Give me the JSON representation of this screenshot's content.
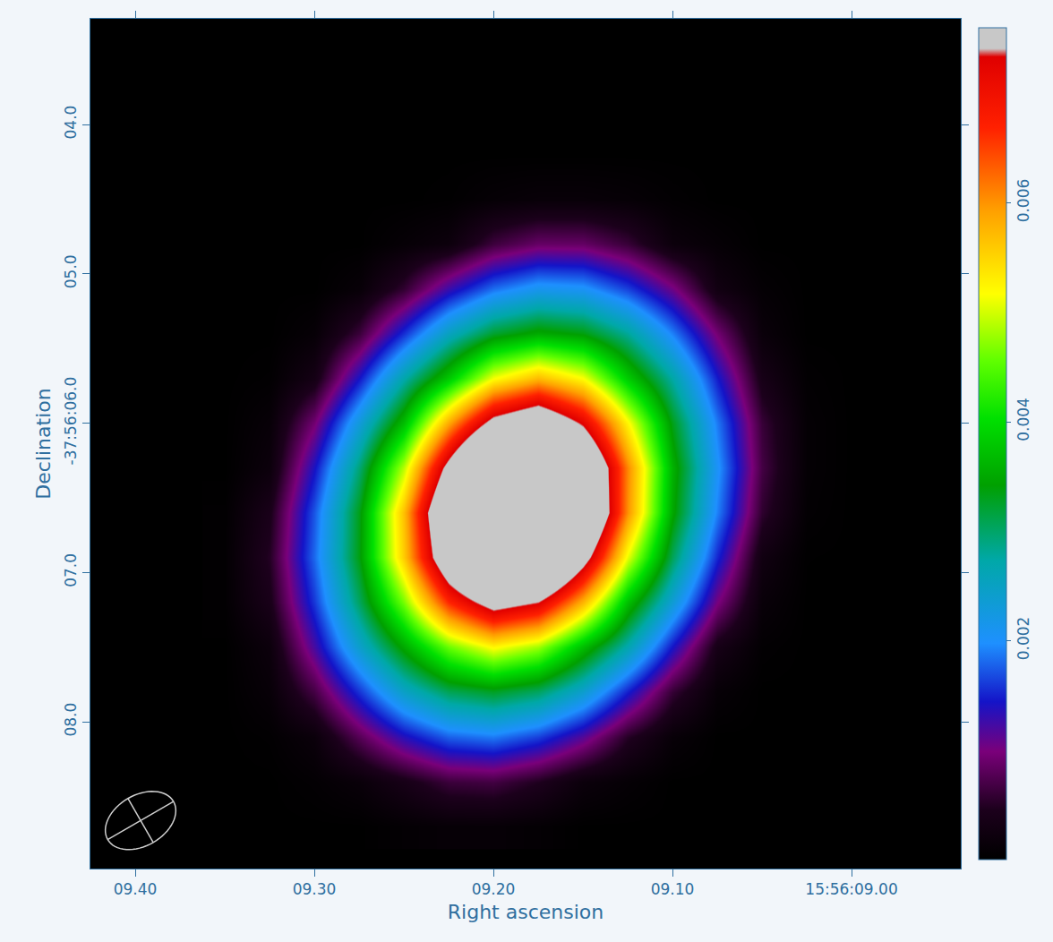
{
  "chart_data": {
    "type": "heatmap",
    "xlabel": "Right ascension",
    "ylabel": "Declination",
    "x": [
      9.35,
      9.325,
      9.3,
      9.275,
      9.25,
      9.225,
      9.2,
      9.175,
      9.15,
      9.125,
      9.1,
      9.075,
      9.05,
      9.025,
      9.0
    ],
    "y": [
      3.9,
      4.2,
      4.5,
      4.8,
      5.1,
      5.4,
      5.7,
      6.0,
      6.3,
      6.6,
      6.9,
      7.2,
      7.5,
      7.8,
      8.1,
      8.4,
      8.7
    ],
    "z": [
      [
        0,
        0,
        0,
        0,
        0,
        0,
        0,
        0,
        0,
        0,
        0,
        0,
        0,
        0,
        0
      ],
      [
        0,
        0,
        0,
        0,
        0,
        0,
        0,
        0,
        0,
        0,
        0,
        0,
        0,
        0,
        0
      ],
      [
        0,
        0,
        0,
        0,
        0,
        2e-05,
        9e-05,
        0.00013,
        0.00013,
        0.0001,
        4e-05,
        0,
        0,
        0,
        0
      ],
      [
        0,
        0,
        0,
        0,
        0.0001,
        0.0002,
        0.00064,
        0.00087,
        0.00086,
        0.00061,
        0.00019,
        9e-05,
        0,
        0,
        0
      ],
      [
        0,
        0,
        0,
        0.00012,
        0.00057,
        0.00127,
        0.00183,
        0.00212,
        0.00205,
        0.00163,
        0.00104,
        0.00028,
        7e-05,
        0,
        0
      ],
      [
        0,
        0,
        0.0001,
        0.00062,
        0.00156,
        0.00253,
        0.00323,
        0.00353,
        0.00337,
        0.0028,
        0.00191,
        0.00094,
        0.00016,
        0,
        0
      ],
      [
        0,
        3e-05,
        0.00033,
        0.00143,
        0.0027,
        0.00381,
        0.00514,
        0.00572,
        0.00517,
        0.00384,
        0.00274,
        0.00147,
        0.00036,
        4e-05,
        0
      ],
      [
        0,
        0.00012,
        0.00094,
        0.00229,
        0.00371,
        0.00585,
        0.00774,
        0.00847,
        0.00726,
        0.00523,
        0.00332,
        0.00188,
        0.00061,
        7e-05,
        0
      ],
      [
        0,
        0.00019,
        0.00141,
        0.00294,
        0.0049,
        0.00772,
        0.01042,
        0.01098,
        0.00903,
        0.00608,
        0.0036,
        0.00204,
        0.00068,
        7e-05,
        0
      ],
      [
        3e-05,
        0.00041,
        0.00173,
        0.00332,
        0.00568,
        0.00888,
        0.01153,
        0.0117,
        0.00927,
        0.00602,
        0.0035,
        0.00191,
        0.00056,
        5e-05,
        0
      ],
      [
        4e-05,
        0.0005,
        0.00181,
        0.00335,
        0.00558,
        0.00837,
        0.01049,
        0.01025,
        0.00782,
        0.00508,
        0.00306,
        0.00152,
        0.00027,
        1e-05,
        0
      ],
      [
        4e-05,
        0.0004,
        0.0016,
        0.00303,
        0.00465,
        0.00666,
        0.00784,
        0.00738,
        0.00576,
        0.00373,
        0.00235,
        0.00101,
        0.00014,
        0,
        0
      ],
      [
        0,
        0.00019,
        0.00122,
        0.00242,
        0.00352,
        0.00459,
        0.00522,
        0.0048,
        0.00371,
        0.00267,
        0.00144,
        0.00036,
        4e-05,
        0,
        0
      ],
      [
        0,
        0.00012,
        0.00069,
        0.00158,
        0.00248,
        0.00307,
        0.00327,
        0.00303,
        0.00241,
        0.00149,
        0.0006,
        0.0001,
        0,
        0,
        0
      ],
      [
        0,
        3e-05,
        0.00017,
        0.00077,
        0.00135,
        0.00176,
        0.00187,
        0.00162,
        0.00115,
        0.0005,
        0.00012,
        0,
        0,
        0,
        0
      ],
      [
        0,
        0,
        5e-05,
        0.00015,
        0.00037,
        0.00063,
        0.00067,
        0.00047,
        0.00018,
        8e-05,
        0,
        0,
        0,
        0,
        0
      ],
      [
        0,
        0,
        0,
        0,
        6e-05,
        0.0001,
        0.0001,
        6e-05,
        0,
        0,
        0,
        0,
        0,
        0,
        0
      ]
    ],
    "xlim": [
      9.425,
      8.939
    ],
    "ylim": [
      8.982,
      3.292
    ],
    "xticks": [
      {
        "value": 9.4,
        "label": "09.40"
      },
      {
        "value": 9.3,
        "label": "09.30"
      },
      {
        "value": 9.2,
        "label": "09.20"
      },
      {
        "value": 9.1,
        "label": "09.10"
      },
      {
        "value": 9.0,
        "label": "15:56:09.00"
      }
    ],
    "yticks": [
      {
        "value": 4.0,
        "label": "04.0"
      },
      {
        "value": 5.0,
        "label": "05.0"
      },
      {
        "value": 6.0,
        "label": "-37:56:06.0"
      },
      {
        "value": 7.0,
        "label": "07.0"
      },
      {
        "value": 8.0,
        "label": "08.0"
      }
    ],
    "colorbar": {
      "range": [
        0,
        0.0076
      ],
      "ticks": [
        0.002,
        0.004,
        0.006
      ]
    },
    "beam": {
      "x": 9.397,
      "y": 8.66,
      "major": 0.51,
      "minor": 0.34,
      "pa": -60
    },
    "grid": false
  }
}
